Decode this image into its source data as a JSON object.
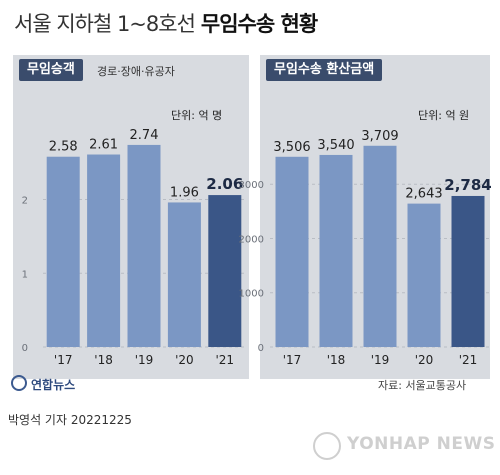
{
  "title": {
    "light": "서울 지하철 1~8호선",
    "bold": "무임수송 현황"
  },
  "charts": [
    {
      "id": "left",
      "tag": "무임승객",
      "subtitle": "경로·장애·유공자",
      "unit": "단위: 억 명"
    },
    {
      "id": "right",
      "tag": "무임수송 환산금액",
      "unit": "단위: 억 원"
    }
  ],
  "chart_data": [
    {
      "type": "bar",
      "title": "무임승객",
      "categories": [
        "'17",
        "'18",
        "'19",
        "'20",
        "'21"
      ],
      "values": [
        2.58,
        2.61,
        2.74,
        1.96,
        2.06
      ],
      "value_labels": [
        "2.58",
        "2.61",
        "2.74",
        "1.96",
        "2.06"
      ],
      "yticks": [
        "0",
        "1",
        "2"
      ],
      "ylim": [
        0,
        3.2
      ],
      "highlight_index": 4,
      "colors": {
        "bar": "#7b97c4",
        "highlight": "#3a5687"
      }
    },
    {
      "type": "bar",
      "title": "무임수송 환산금액",
      "categories": [
        "'17",
        "'18",
        "'19",
        "'20",
        "'21"
      ],
      "values": [
        3506,
        3540,
        3709,
        2643,
        2784
      ],
      "value_labels": [
        "3,506",
        "3,540",
        "3,709",
        "2,643",
        "2,784"
      ],
      "yticks": [
        "0",
        "1000",
        "2000",
        "3000"
      ],
      "ylim": [
        0,
        4350
      ],
      "highlight_index": 4,
      "colors": {
        "bar": "#7b97c4",
        "highlight": "#3a5687"
      }
    }
  ],
  "footer": {
    "logo_text": "연합뉴스",
    "source": "자료: 서울교통공사",
    "byline": "박영석 기자  20221225",
    "watermark": "YONHAP NEWS"
  }
}
